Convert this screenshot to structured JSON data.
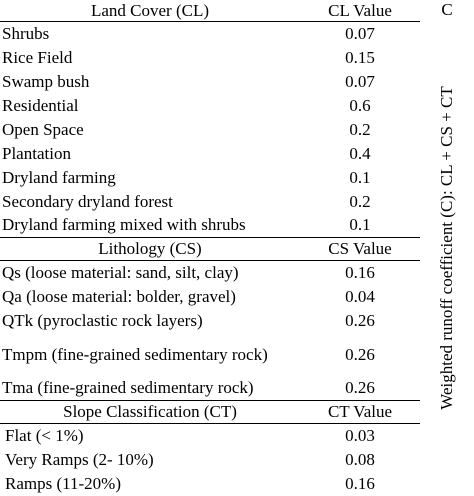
{
  "land_cover": {
    "header": "Land Cover (CL)",
    "value_header": "CL Value",
    "rows": [
      {
        "name": "Shrubs",
        "value": "0.07"
      },
      {
        "name": "Rice Field",
        "value": "0.15"
      },
      {
        "name": "Swamp bush",
        "value": "0.07"
      },
      {
        "name": "Residential",
        "value": "0.6"
      },
      {
        "name": "Open Space",
        "value": "0.2"
      },
      {
        "name": "Plantation",
        "value": "0.4"
      },
      {
        "name": "Dryland farming",
        "value": "0.1"
      },
      {
        "name": "Secondary dryland forest",
        "value": "0.2"
      },
      {
        "name": "Dryland farming mixed with shrubs",
        "value": "0.1"
      }
    ]
  },
  "lithology": {
    "header": "Lithology (CS)",
    "value_header": "CS Value",
    "rows": [
      {
        "name": "Qs (loose material: sand, silt, clay)",
        "value": "0.16"
      },
      {
        "name": "Qa (loose material: bolder, gravel)",
        "value": "0.04"
      },
      {
        "name": "QTk (pyroclastic rock layers)",
        "value": "0.26"
      },
      {
        "name": "Tmpm (fine-grained sedimentary rock)",
        "value": "0.26"
      },
      {
        "name": "Tma (fine-grained sedimentary rock)",
        "value": "0.26"
      }
    ]
  },
  "slope": {
    "header": "Slope Classification (CT)",
    "value_header": "CT Value",
    "rows": [
      {
        "name": "Flat (< 1%)",
        "value": "0.03"
      },
      {
        "name": "Very Ramps (2- 10%)",
        "value": "0.08"
      },
      {
        "name": "Ramps (11-20%)",
        "value": "0.16"
      }
    ]
  },
  "side": {
    "header": "C",
    "label": "Weighted runoff coefficient (C): CL + CS + CT"
  }
}
